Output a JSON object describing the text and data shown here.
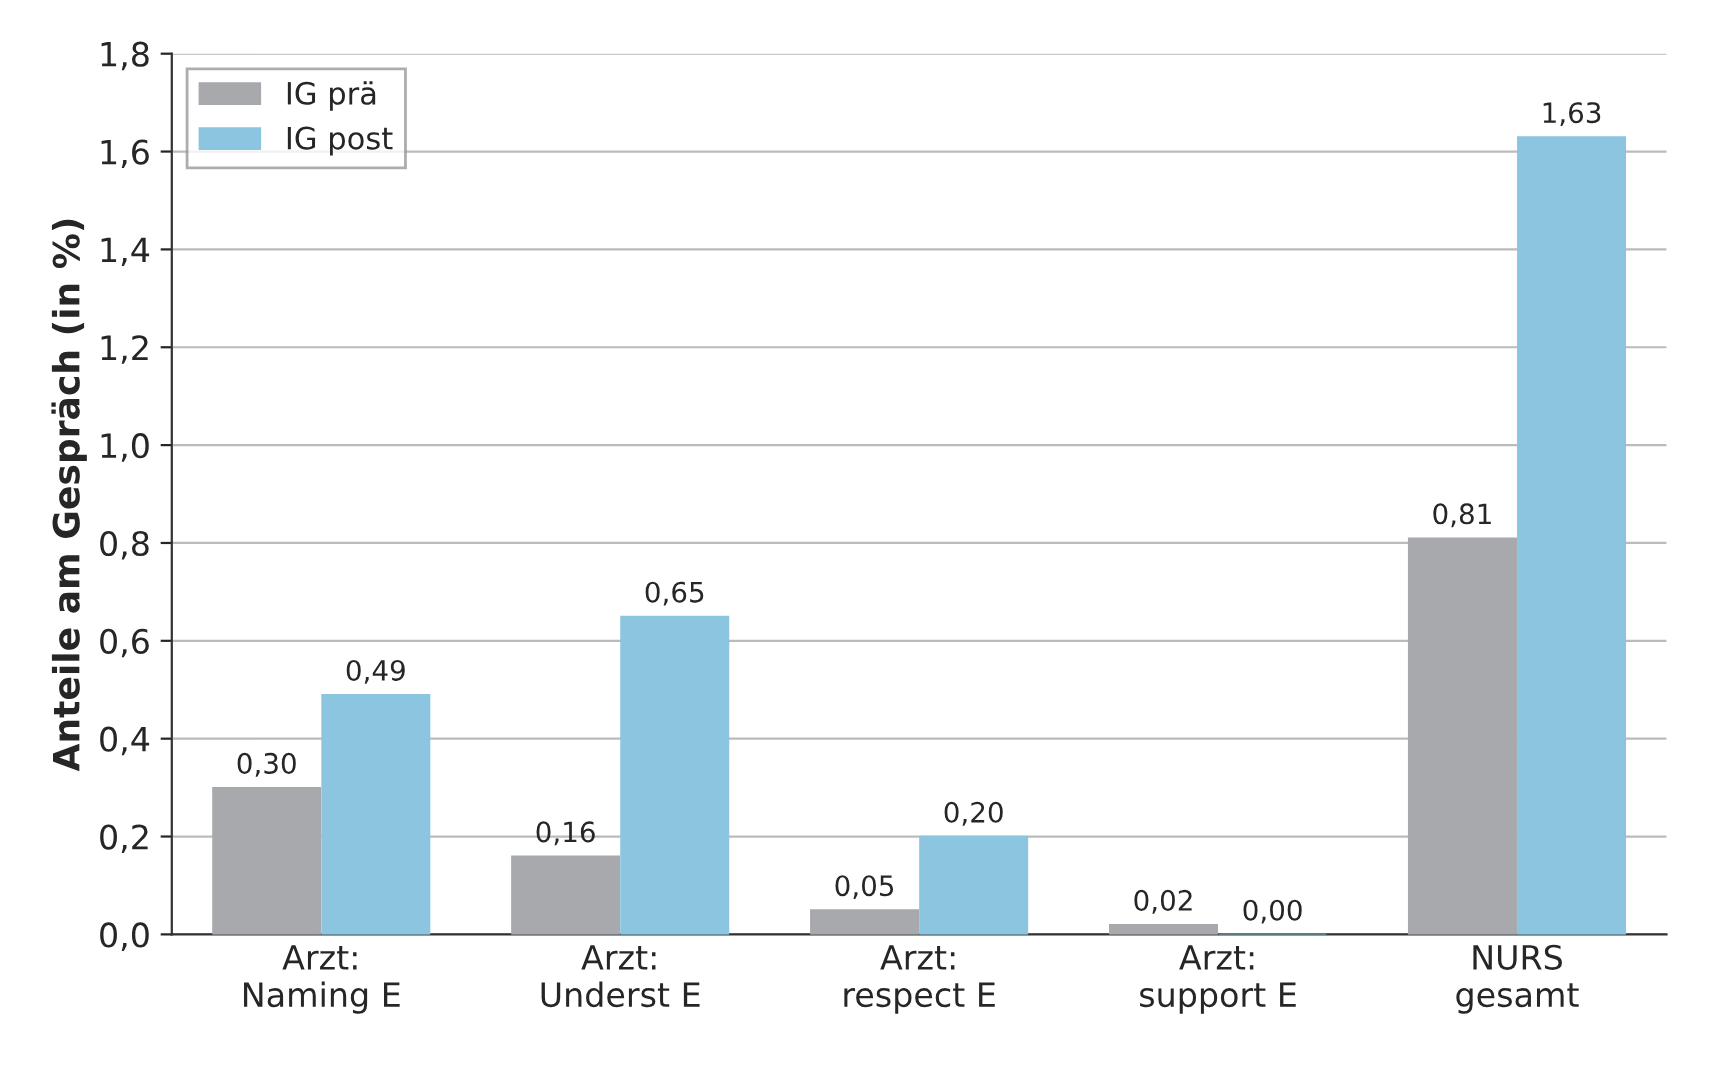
{
  "chart_data": {
    "type": "bar",
    "ylabel": "Anteile am Gespräch (in %)",
    "categories": [
      "Arzt:\nNaming E",
      "Arzt:\nUnderst E",
      "Arzt:\nrespect E",
      "Arzt:\nsupport E",
      "NURS\ngesamt"
    ],
    "series": [
      {
        "name": "IG prä",
        "color": "#a7a9ac",
        "values": [
          0.3,
          0.16,
          0.05,
          0.02,
          0.81
        ],
        "value_labels": [
          "0,30",
          "0,16",
          "0,05",
          "0,02",
          "0,81"
        ]
      },
      {
        "name": "IG post",
        "color": "#8bc5df",
        "values": [
          0.49,
          0.65,
          0.2,
          0.0,
          1.63
        ],
        "value_labels": [
          "0,49",
          "0,65",
          "0,20",
          "0,00",
          "1,63"
        ]
      }
    ],
    "ylim": [
      0,
      1.8
    ],
    "yticks": [
      {
        "value": 0,
        "label": "0,0"
      },
      {
        "value": 0.2,
        "label": "0,2"
      },
      {
        "value": 0.4,
        "label": "0,4"
      },
      {
        "value": 0.6,
        "label": "0,6"
      },
      {
        "value": 0.8,
        "label": "0,8"
      },
      {
        "value": 1.0,
        "label": "1,0"
      },
      {
        "value": 1.2,
        "label": "1,2"
      },
      {
        "value": 1.4,
        "label": "1,4"
      },
      {
        "value": 1.6,
        "label": "1,6"
      },
      {
        "value": 1.8,
        "label": "1,8"
      }
    ],
    "grid": "y",
    "legend": "top left"
  }
}
